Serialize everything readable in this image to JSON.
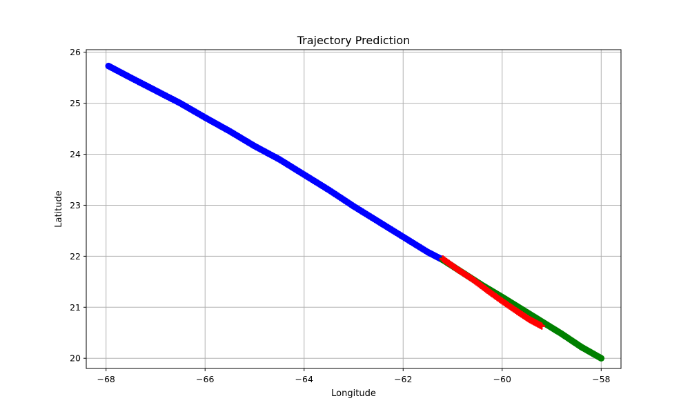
{
  "chart_data": {
    "type": "scatter",
    "title": "Trajectory Prediction",
    "xlabel": "Longitude",
    "ylabel": "Latitude",
    "xlim": [
      -68.4,
      -57.6
    ],
    "ylim": [
      19.8,
      26.05
    ],
    "xticks": [
      -68,
      -66,
      -64,
      -62,
      -60,
      -58
    ],
    "yticks": [
      20,
      21,
      22,
      23,
      24,
      25,
      26
    ],
    "xtick_labels": [
      "−68",
      "−66",
      "−64",
      "−62",
      "−60",
      "−58"
    ],
    "ytick_labels": [
      "20",
      "21",
      "22",
      "23",
      "24",
      "25",
      "26"
    ],
    "grid": true,
    "series": [
      {
        "color": "#0000ff",
        "marker": "circle",
        "x": [
          -67.95,
          -67.5,
          -67.0,
          -66.5,
          -66.0,
          -65.5,
          -65.0,
          -64.5,
          -64.0,
          -63.5,
          -63.0,
          -62.5,
          -62.0,
          -61.5,
          -61.2
        ],
        "y": [
          25.73,
          25.5,
          25.25,
          25.0,
          24.72,
          24.45,
          24.16,
          23.9,
          23.6,
          23.3,
          22.98,
          22.68,
          22.38,
          22.08,
          21.93
        ]
      },
      {
        "color": "#008000",
        "marker": "circle",
        "x": [
          -61.2,
          -60.8,
          -60.4,
          -60.0,
          -59.6,
          -59.2,
          -58.8,
          -58.4,
          -58.0
        ],
        "y": [
          21.93,
          21.68,
          21.43,
          21.2,
          20.96,
          20.72,
          20.48,
          20.22,
          20.0
        ]
      },
      {
        "color": "#ff0000",
        "marker": "plus",
        "x": [
          -61.2,
          -60.9,
          -60.6,
          -60.3,
          -60.0,
          -59.7,
          -59.45,
          -59.2
        ],
        "y": [
          21.95,
          21.74,
          21.55,
          21.33,
          21.12,
          20.92,
          20.76,
          20.63
        ]
      }
    ]
  }
}
